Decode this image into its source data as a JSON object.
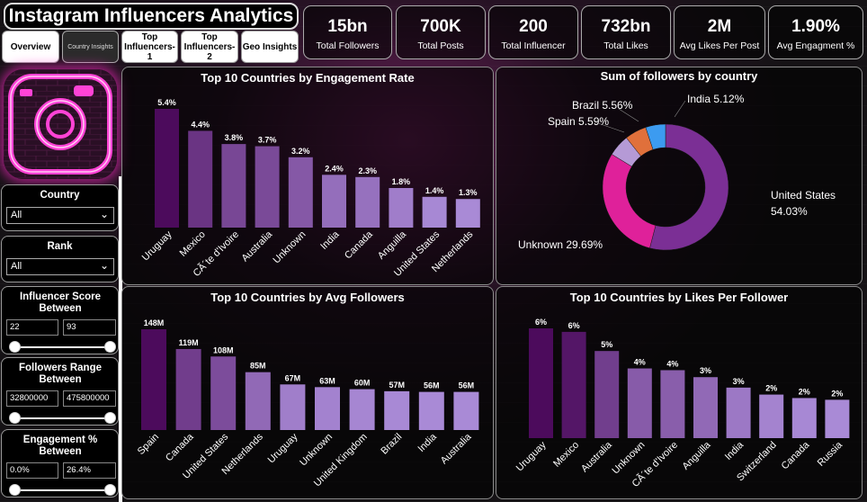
{
  "header": {
    "title": "Instagram Influencers Analytics"
  },
  "tabs": [
    {
      "label": "Overview",
      "active": false
    },
    {
      "label": "Country Insights",
      "active": true
    },
    {
      "label": "Top Influencers-1",
      "active": false
    },
    {
      "label": "Top Influencers-2",
      "active": false
    },
    {
      "label": "Geo Insights",
      "active": false
    }
  ],
  "kpis": [
    {
      "value": "15bn",
      "label": "Total Followers"
    },
    {
      "value": "700K",
      "label": "Total Posts"
    },
    {
      "value": "200",
      "label": "Total Influencer"
    },
    {
      "value": "732bn",
      "label": "Total Likes"
    },
    {
      "value": "2M",
      "label": "Avg Likes Per Post"
    },
    {
      "value": "1.90%",
      "label": "Avg Engagment %"
    }
  ],
  "filters": {
    "country": {
      "label": "Country",
      "value": "All"
    },
    "rank": {
      "label": "Rank",
      "value": "All"
    },
    "score": {
      "label": "Influencer Score Between",
      "min": "22",
      "max": "93"
    },
    "followers": {
      "label": "Followers Range Between",
      "min": "32800000",
      "max": "475800000"
    },
    "engagement": {
      "label": "Engagement % Between",
      "min": "0.0%",
      "max": "26.4%"
    }
  },
  "colors": {
    "accent": "#ff2fc8",
    "dark_purple": "#4c0b5c",
    "light_purple": "#a98ad6"
  },
  "chart_data": [
    {
      "type": "bar",
      "title": "Top 10 Countries by Engagement Rate",
      "categories": [
        "Uruguay",
        "Mexico",
        "CÃ´te d'Ivoire",
        "Australia",
        "Unknown",
        "India",
        "Canada",
        "Anguilla",
        "United States",
        "Netherlands"
      ],
      "values": [
        5.4,
        4.4,
        3.8,
        3.7,
        3.2,
        2.4,
        2.3,
        1.8,
        1.4,
        1.3
      ],
      "labels": [
        "5.4%",
        "4.4%",
        "3.8%",
        "3.7%",
        "3.2%",
        "2.4%",
        "2.3%",
        "1.8%",
        "1.4%",
        "1.3%"
      ],
      "ylim": [
        0,
        5.4
      ]
    },
    {
      "type": "pie",
      "title": "Sum of followers by country",
      "slices": [
        {
          "label": "United States",
          "value": 54.03,
          "color": "#7b2f95"
        },
        {
          "label": "Unknown",
          "value": 29.69,
          "color": "#df219a"
        },
        {
          "label": "Spain",
          "value": 5.59,
          "color": "#b59ad6"
        },
        {
          "label": "Brazil",
          "value": 5.56,
          "color": "#e0703b"
        },
        {
          "label": "India",
          "value": 5.12,
          "color": "#3c9bf0"
        }
      ],
      "label_texts": [
        "United States 54.03%",
        "Unknown 29.69%",
        "Spain 5.59%",
        "Brazil 5.56%",
        "India 5.12%"
      ]
    },
    {
      "type": "bar",
      "title": "Top 10 Countries by Avg Followers",
      "categories": [
        "Spain",
        "Canada",
        "United States",
        "Netherlands",
        "Uruguay",
        "Unknown",
        "United Kingdom",
        "Brazil",
        "India",
        "Australia"
      ],
      "values": [
        148,
        119,
        108,
        85,
        67,
        63,
        60,
        57,
        56,
        56
      ],
      "labels": [
        "148M",
        "119M",
        "108M",
        "85M",
        "67M",
        "63M",
        "60M",
        "57M",
        "56M",
        "56M"
      ],
      "ylim": [
        0,
        148
      ]
    },
    {
      "type": "bar",
      "title": "Top 10 Countries by Likes Per Follower",
      "categories": [
        "Uruguay",
        "Mexico",
        "Australia",
        "Unknown",
        "CÃ´te d'Ivoire",
        "Anguilla",
        "India",
        "Switzerland",
        "Canada",
        "Russia"
      ],
      "values": [
        6.3,
        6.1,
        5.0,
        4.0,
        3.9,
        3.5,
        2.9,
        2.5,
        2.3,
        2.2
      ],
      "labels": [
        "6%",
        "6%",
        "5%",
        "4%",
        "4%",
        "3%",
        "3%",
        "2%",
        "2%",
        "2%"
      ],
      "ylim": [
        0,
        6.3
      ]
    }
  ]
}
